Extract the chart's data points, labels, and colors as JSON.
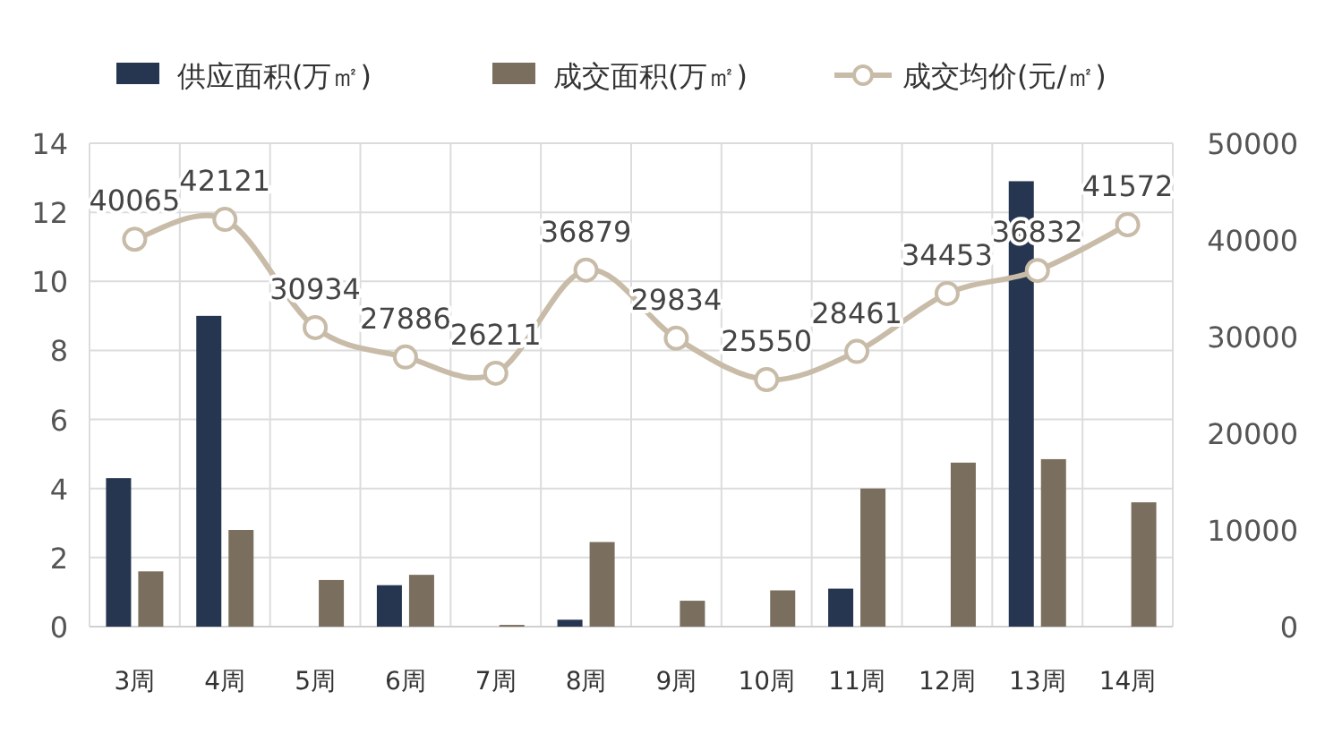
{
  "chart_data": {
    "type": "bar",
    "categories": [
      "3周",
      "4周",
      "5周",
      "6周",
      "7周",
      "8周",
      "9周",
      "10周",
      "11周",
      "12周",
      "13周",
      "14周"
    ],
    "series": [
      {
        "name": "供应面积(万㎡)",
        "color": "#263650",
        "values": [
          4.3,
          9.0,
          null,
          1.2,
          null,
          0.2,
          null,
          null,
          1.1,
          null,
          12.9,
          null
        ]
      },
      {
        "name": "成交面积(万㎡)",
        "color": "#7a6e5e",
        "values": [
          1.6,
          2.8,
          1.35,
          1.5,
          0.05,
          2.45,
          0.75,
          1.05,
          4.0,
          4.75,
          4.85,
          3.6
        ]
      },
      {
        "name": "成交均价(元/㎡)",
        "type": "line",
        "axis": "y2",
        "marker": "circle",
        "color": "#c8bca8",
        "values": [
          40065,
          42121,
          30934,
          27886,
          26211,
          36879,
          29834,
          25550,
          28461,
          34453,
          36832,
          41572
        ],
        "value_labels": [
          "40065",
          "42121",
          "30934",
          "27886",
          "26211",
          "36879",
          "29834",
          "25550",
          "28461",
          "34453",
          "36832",
          "41572"
        ]
      }
    ],
    "ylim": [
      0,
      14
    ],
    "yticks": [
      0,
      2,
      4,
      6,
      8,
      10,
      12,
      14
    ],
    "y2lim": [
      0,
      50000
    ],
    "y2ticks": [
      0,
      10000,
      20000,
      30000,
      40000,
      50000
    ],
    "grid": true,
    "legend": "top"
  }
}
